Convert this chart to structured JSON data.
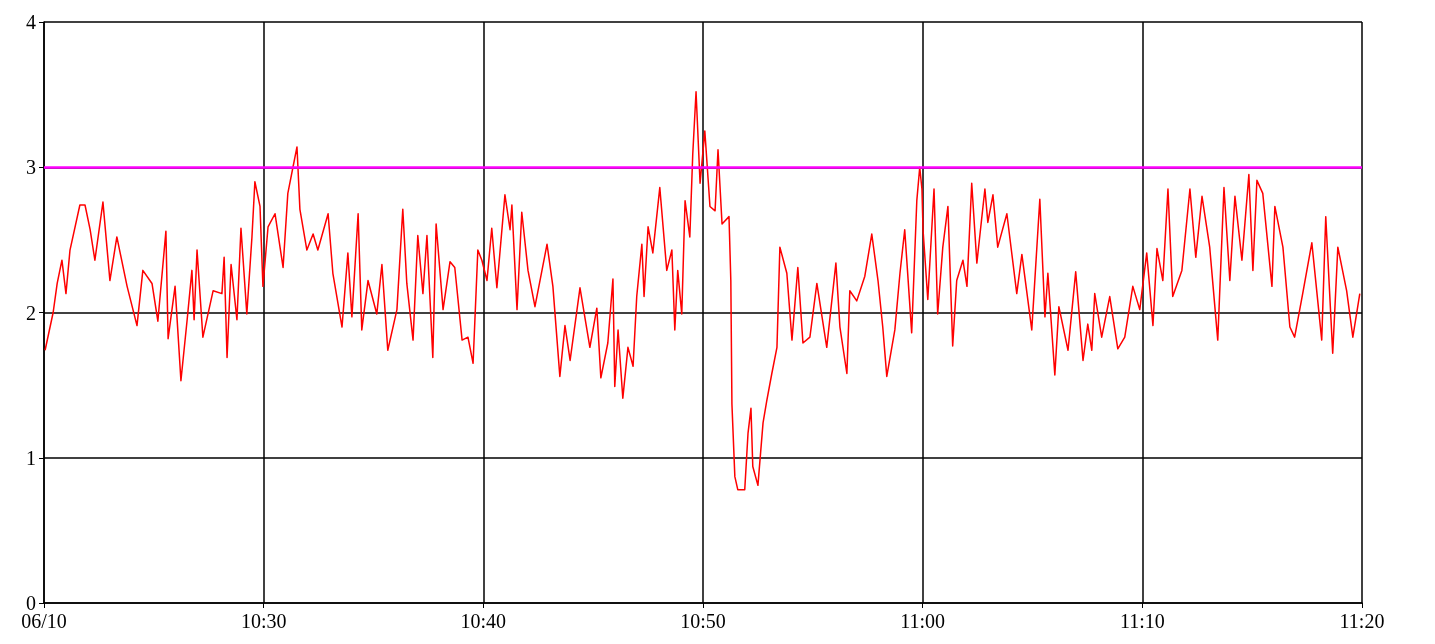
{
  "chart_data": {
    "type": "line",
    "grid": true,
    "marker": "none",
    "xlim": [
      "--06-10T10:20",
      "--06-10T11:20"
    ],
    "xticks": [
      {
        "value": "--06-10T10:20",
        "label": "06/10"
      },
      {
        "value": "--06-10T10:30",
        "label": "10:30"
      },
      {
        "value": "--06-10T10:40",
        "label": "10:40"
      },
      {
        "value": "--06-10T10:50",
        "label": "10:50"
      },
      {
        "value": "--06-10T11:00",
        "label": "11:00"
      },
      {
        "value": "--06-10T11:10",
        "label": "11:10"
      },
      {
        "value": "--06-10T11:20",
        "label": "11:20"
      }
    ],
    "ylim": [
      0,
      4
    ],
    "yticks": [
      0,
      1,
      2,
      3,
      4
    ],
    "ref_lines": [
      {
        "axis": "y",
        "value": 3,
        "color": "#ff00ff"
      }
    ],
    "series": [
      {
        "color": "#ff0000",
        "x": [
          "--06-10T10:20:03",
          "--06-10T10:20:25",
          "--06-10T10:20:36",
          "--06-10T10:20:49",
          "--06-10T10:21:00",
          "--06-10T10:21:11",
          "--06-10T10:21:38",
          "--06-10T10:21:52",
          "--06-10T10:22:06",
          "--06-10T10:22:19",
          "--06-10T10:22:41",
          "--06-10T10:23:00",
          "--06-10T10:23:19",
          "--06-10T10:23:47",
          "--06-10T10:24:14",
          "--06-10T10:24:30",
          "--06-10T10:24:55",
          "--06-10T10:25:11",
          "--06-10T10:25:33",
          "--06-10T10:25:39",
          "--06-10T10:25:58",
          "--06-10T10:26:14",
          "--06-10T10:26:31",
          "--06-10T10:26:44",
          "--06-10T10:26:50",
          "--06-10T10:26:58",
          "--06-10T10:27:14",
          "--06-10T10:27:42",
          "--06-10T10:28:06",
          "--06-10T10:28:12",
          "--06-10T10:28:20",
          "--06-10T10:28:31",
          "--06-10T10:28:47",
          "--06-10T10:28:58",
          "--06-10T10:29:14",
          "--06-10T10:29:28",
          "--06-10T10:29:36",
          "--06-10T10:29:50",
          "--06-10T10:29:58",
          "--06-10T10:30:12",
          "--06-10T10:30:31",
          "--06-10T10:30:53",
          "--06-10T10:31:06",
          "--06-10T10:31:20",
          "--06-10T10:31:31",
          "--06-10T10:31:39",
          "--06-10T10:31:58",
          "--06-10T10:32:15",
          "--06-10T10:32:28",
          "--06-10T10:32:56",
          "--06-10T10:33:09",
          "--06-10T10:33:34",
          "--06-10T10:33:50",
          "--06-10T10:34:01",
          "--06-10T10:34:18",
          "--06-10T10:34:28",
          "--06-10T10:34:45",
          "--06-10T10:35:09",
          "--06-10T10:35:23",
          "--06-10T10:35:39",
          "--06-10T10:36:04",
          "--06-10T10:36:20",
          "--06-10T10:36:31",
          "--06-10T10:36:48",
          "--06-10T10:37:01",
          "--06-10T10:37:15",
          "--06-10T10:37:26",
          "--06-10T10:37:42",
          "--06-10T10:37:51",
          "--06-10T10:38:10",
          "--06-10T10:38:29",
          "--06-10T10:38:42",
          "--06-10T10:39:02",
          "--06-10T10:39:18",
          "--06-10T10:39:32",
          "--06-10T10:39:45",
          "--06-10T10:39:56",
          "--06-10T10:40:10",
          "--06-10T10:40:23",
          "--06-10T10:40:37",
          "--06-10T10:40:59",
          "--06-10T10:41:13",
          "--06-10T10:41:18",
          "--06-10T10:41:32",
          "--06-10T10:41:45",
          "--06-10T10:42:02",
          "--06-10T10:42:21",
          "--06-10T10:42:54",
          "--06-10T10:43:10",
          "--06-10T10:43:29",
          "--06-10T10:43:43",
          "--06-10T10:43:57",
          "--06-10T10:44:24",
          "--06-10T10:44:51",
          "--06-10T10:45:10",
          "--06-10T10:45:21",
          "--06-10T10:45:40",
          "--06-10T10:45:54",
          "--06-10T10:45:59",
          "--06-10T10:46:08",
          "--06-10T10:46:21",
          "--06-10T10:46:35",
          "--06-10T10:46:49",
          "--06-10T10:46:59",
          "--06-10T10:47:13",
          "--06-10T10:47:19",
          "--06-10T10:47:30",
          "--06-10T10:47:43",
          "--06-10T10:48:02",
          "--06-10T10:48:21",
          "--06-10T10:48:35",
          "--06-10T10:48:43",
          "--06-10T10:48:51",
          "--06-10T10:49:02",
          "--06-10T10:49:11",
          "--06-10T10:49:24",
          "--06-10T10:49:32",
          "--06-10T10:49:41",
          "--06-10T10:49:52",
          "--06-10T10:50:05",
          "--06-10T10:50:19",
          "--06-10T10:50:33",
          "--06-10T10:50:41",
          "--06-10T10:50:52",
          "--06-10T10:51:11",
          "--06-10T10:51:16",
          "--06-10T10:51:19",
          "--06-10T10:51:27",
          "--06-10T10:51:35",
          "--06-10T10:51:54",
          "--06-10T10:52:03",
          "--06-10T10:52:11",
          "--06-10T10:52:16",
          "--06-10T10:52:30",
          "--06-10T10:52:44",
          "--06-10T10:52:54",
          "--06-10T10:53:08",
          "--06-10T10:53:22",
          "--06-10T10:53:30",
          "--06-10T10:53:49",
          "--06-10T10:54:03",
          "--06-10T10:54:19",
          "--06-10T10:54:33",
          "--06-10T10:54:52",
          "--06-10T10:55:11",
          "--06-10T10:55:38",
          "--06-10T10:56:03",
          "--06-10T10:56:14",
          "--06-10T10:56:33",
          "--06-10T10:56:41",
          "--06-10T10:57:00",
          "--06-10T10:57:22",
          "--06-10T10:57:41",
          "--06-10T10:57:58",
          "--06-10T10:58:11",
          "--06-10T10:58:22",
          "--06-10T10:58:44",
          "--06-10T10:58:58",
          "--06-10T10:59:11",
          "--06-10T10:59:30",
          "--06-10T10:59:44",
          "--06-10T10:59:52",
          "--06-10T10:59:58",
          "--06-10T11:00:01",
          "--06-10T11:00:14",
          "--06-10T11:00:31",
          "--06-10T11:00:41",
          "--06-10T11:00:55",
          "--06-10T11:01:09",
          "--06-10T11:01:22",
          "--06-10T11:01:33",
          "--06-10T11:01:50",
          "--06-10T11:02:01",
          "--06-10T11:02:14",
          "--06-10T11:02:28",
          "--06-10T11:02:50",
          "--06-10T11:02:58",
          "--06-10T11:03:12",
          "--06-10T11:03:25",
          "--06-10T11:03:50",
          "--06-10T11:04:17",
          "--06-10T11:04:31",
          "--06-10T11:04:58",
          "--06-10T11:05:20",
          "--06-10T11:05:34",
          "--06-10T11:05:42",
          "--06-10T11:06:01",
          "--06-10T11:06:12",
          "--06-10T11:06:37",
          "--06-10T11:06:58",
          "--06-10T11:07:18",
          "--06-10T11:07:31",
          "--06-10T11:07:42",
          "--06-10T11:07:50",
          "--06-10T11:08:09",
          "--06-10T11:08:31",
          "--06-10T11:08:53",
          "--06-10T11:09:12",
          "--06-10T11:09:34",
          "--06-10T11:09:53",
          "--06-10T11:10:12",
          "--06-10T11:10:29",
          "--06-10T11:10:40",
          "--06-10T11:10:56",
          "--06-10T11:11:10",
          "--06-10T11:11:23",
          "--06-10T11:11:48",
          "--06-10T11:12:10",
          "--06-10T11:12:26",
          "--06-10T11:12:43",
          "--06-10T11:13:04",
          "--06-10T11:13:26",
          "--06-10T11:13:43",
          "--06-10T11:13:59",
          "--06-10T11:14:13",
          "--06-10T11:14:32",
          "--06-10T11:14:51",
          "--06-10T11:15:02",
          "--06-10T11:15:13",
          "--06-10T11:15:29",
          "--06-10T11:15:54",
          "--06-10T11:16:02",
          "--06-10T11:16:24",
          "--06-10T11:16:43",
          "--06-10T11:16:56",
          "--06-10T11:17:18",
          "--06-10T11:17:43",
          "--06-10T11:18:10",
          "--06-10T11:18:21",
          "--06-10T11:18:40",
          "--06-10T11:18:54",
          "--06-10T11:19:18",
          "--06-10T11:19:35",
          "--06-10T11:19:54"
        ],
        "values": [
          1.74,
          2.0,
          2.2,
          2.36,
          2.13,
          2.43,
          2.74,
          2.74,
          2.57,
          2.36,
          2.76,
          2.22,
          2.52,
          2.18,
          1.91,
          2.29,
          2.2,
          1.94,
          2.56,
          1.82,
          2.18,
          1.53,
          1.95,
          2.29,
          1.95,
          2.43,
          1.83,
          2.15,
          2.13,
          2.38,
          1.69,
          2.33,
          1.95,
          2.58,
          1.99,
          2.52,
          2.9,
          2.73,
          2.18,
          2.59,
          2.68,
          2.31,
          2.82,
          3.0,
          3.14,
          2.71,
          2.43,
          2.54,
          2.43,
          2.68,
          2.27,
          1.9,
          2.41,
          1.97,
          2.68,
          1.88,
          2.22,
          1.99,
          2.33,
          1.74,
          2.02,
          2.71,
          2.2,
          1.81,
          2.53,
          2.13,
          2.53,
          1.69,
          2.61,
          2.02,
          2.35,
          2.31,
          1.81,
          1.83,
          1.65,
          2.43,
          2.36,
          2.22,
          2.58,
          2.17,
          2.81,
          2.57,
          2.74,
          2.02,
          2.69,
          2.29,
          2.04,
          2.47,
          2.18,
          1.56,
          1.91,
          1.67,
          2.17,
          1.76,
          2.03,
          1.55,
          1.79,
          2.23,
          1.49,
          1.88,
          1.41,
          1.76,
          1.63,
          2.11,
          2.47,
          2.11,
          2.59,
          2.41,
          2.86,
          2.29,
          2.43,
          1.88,
          2.29,
          1.99,
          2.77,
          2.52,
          3.09,
          3.52,
          2.89,
          3.25,
          2.73,
          2.7,
          3.12,
          2.61,
          2.66,
          2.22,
          1.37,
          0.87,
          0.78,
          0.78,
          1.17,
          1.34,
          0.94,
          0.81,
          1.24,
          1.39,
          1.58,
          1.76,
          2.45,
          2.27,
          1.81,
          2.31,
          1.79,
          1.83,
          2.2,
          1.76,
          2.34,
          1.9,
          1.58,
          2.15,
          2.08,
          2.25,
          2.54,
          2.22,
          1.9,
          1.56,
          1.88,
          2.27,
          2.57,
          1.86,
          2.77,
          3.0,
          2.85,
          2.57,
          2.09,
          2.85,
          1.99,
          2.45,
          2.73,
          1.77,
          2.22,
          2.36,
          2.18,
          2.89,
          2.34,
          2.85,
          2.62,
          2.81,
          2.45,
          2.68,
          2.13,
          2.4,
          1.88,
          2.78,
          1.97,
          2.27,
          1.57,
          2.04,
          1.74,
          2.28,
          1.67,
          1.92,
          1.74,
          2.13,
          1.83,
          2.11,
          1.75,
          1.83,
          2.18,
          2.02,
          2.41,
          1.91,
          2.44,
          2.22,
          2.85,
          2.11,
          2.29,
          2.85,
          2.38,
          2.8,
          2.45,
          1.81,
          2.86,
          2.22,
          2.8,
          2.36,
          2.95,
          2.29,
          2.91,
          2.82,
          2.18,
          2.73,
          2.45,
          1.9,
          1.83,
          2.13,
          2.48,
          1.81,
          2.66,
          1.72,
          2.45,
          2.15,
          1.83,
          2.13
        ]
      }
    ]
  }
}
